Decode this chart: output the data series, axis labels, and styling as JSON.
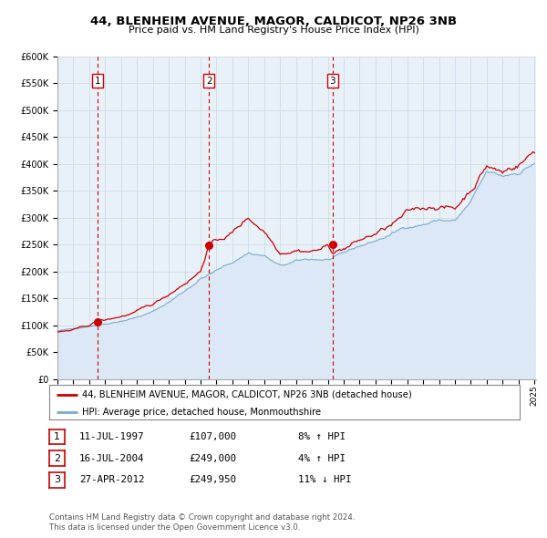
{
  "title1": "44, BLENHEIM AVENUE, MAGOR, CALDICOT, NP26 3NB",
  "title2": "Price paid vs. HM Land Registry's House Price Index (HPI)",
  "background_color": "#ffffff",
  "plot_bg_color": "#e8f0f8",
  "grid_color": "#c8d8e8",
  "hpi_fill_color": "#dce8f5",
  "hpi_line_color": "#7aaad0",
  "price_line_color": "#cc0000",
  "sale_marker_color": "#cc0000",
  "vline_color": "#cc0000",
  "sales": [
    {
      "label": "1",
      "date_x": 1997.535,
      "price": 107000
    },
    {
      "label": "2",
      "date_x": 2004.535,
      "price": 249000
    },
    {
      "label": "3",
      "date_x": 2012.31,
      "price": 249950
    }
  ],
  "xlim": [
    1995.0,
    2025.1
  ],
  "ylim": [
    0,
    600000
  ],
  "yticks": [
    0,
    50000,
    100000,
    150000,
    200000,
    250000,
    300000,
    350000,
    400000,
    450000,
    500000,
    550000,
    600000
  ],
  "legend_label_price": "44, BLENHEIM AVENUE, MAGOR, CALDICOT, NP26 3NB (detached house)",
  "legend_label_hpi": "HPI: Average price, detached house, Monmouthshire",
  "table_rows": [
    {
      "num": "1",
      "date": "11-JUL-1997",
      "price": "£107,000",
      "hpi": "8% ↑ HPI"
    },
    {
      "num": "2",
      "date": "16-JUL-2004",
      "price": "£249,000",
      "hpi": "4% ↑ HPI"
    },
    {
      "num": "3",
      "date": "27-APR-2012",
      "price": "£249,950",
      "hpi": "11% ↓ HPI"
    }
  ],
  "footer1": "Contains HM Land Registry data © Crown copyright and database right 2024.",
  "footer2": "This data is licensed under the Open Government Licence v3.0."
}
